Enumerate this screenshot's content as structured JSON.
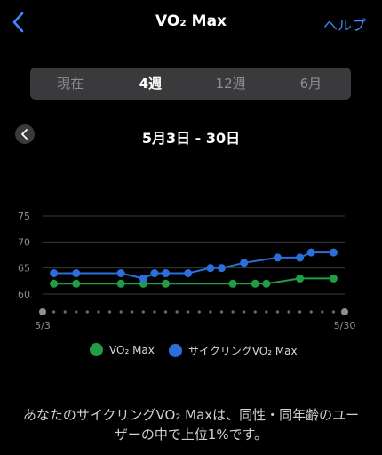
{
  "nav": {
    "title": "VO₂ Max",
    "help": "ヘルプ"
  },
  "segments": [
    {
      "label": "現在",
      "active": false
    },
    {
      "label": "4週",
      "active": true
    },
    {
      "label": "12週",
      "active": false
    },
    {
      "label": "6月",
      "active": false
    }
  ],
  "range": {
    "label": "5月3日 - 30日"
  },
  "colors": {
    "green": "#1f9e45",
    "blue": "#2a6fdb",
    "accent": "#3b8cff"
  },
  "chart_data": {
    "type": "line",
    "title": "",
    "xlabel": "",
    "ylabel": "",
    "ylim": [
      57,
      78
    ],
    "yticks": [
      60,
      65,
      70,
      75
    ],
    "xlim": [
      3,
      30
    ],
    "xtick_labels": [
      {
        "x": 3,
        "label": "5/3"
      },
      {
        "x": 30,
        "label": "5/30"
      }
    ],
    "grid": true,
    "series": [
      {
        "name": "VO₂ Max",
        "color": "#1f9e45",
        "points": [
          [
            4,
            62
          ],
          [
            6,
            62
          ],
          [
            10,
            62
          ],
          [
            12,
            62
          ],
          [
            14,
            62
          ],
          [
            20,
            62
          ],
          [
            22,
            62
          ],
          [
            23,
            62
          ],
          [
            26,
            63
          ],
          [
            29,
            63
          ]
        ]
      },
      {
        "name": "サイクリングVO₂ Max",
        "color": "#2a6fdb",
        "points": [
          [
            4,
            64
          ],
          [
            6,
            64
          ],
          [
            10,
            64
          ],
          [
            12,
            63
          ],
          [
            13,
            64
          ],
          [
            14,
            64
          ],
          [
            16,
            64
          ],
          [
            18,
            65
          ],
          [
            19,
            65
          ],
          [
            21,
            66
          ],
          [
            24,
            67
          ],
          [
            26,
            67
          ],
          [
            27,
            68
          ],
          [
            29,
            68
          ]
        ]
      }
    ]
  },
  "legend": [
    {
      "label": "VO₂ Max",
      "color": "#1f9e45"
    },
    {
      "label": "サイクリングVO₂ Max",
      "color": "#2a6fdb"
    }
  ],
  "footer": {
    "text": "あなたのサイクリングVO₂ Maxは、同性・同年齢のユーザーの中で上位1%です。"
  }
}
